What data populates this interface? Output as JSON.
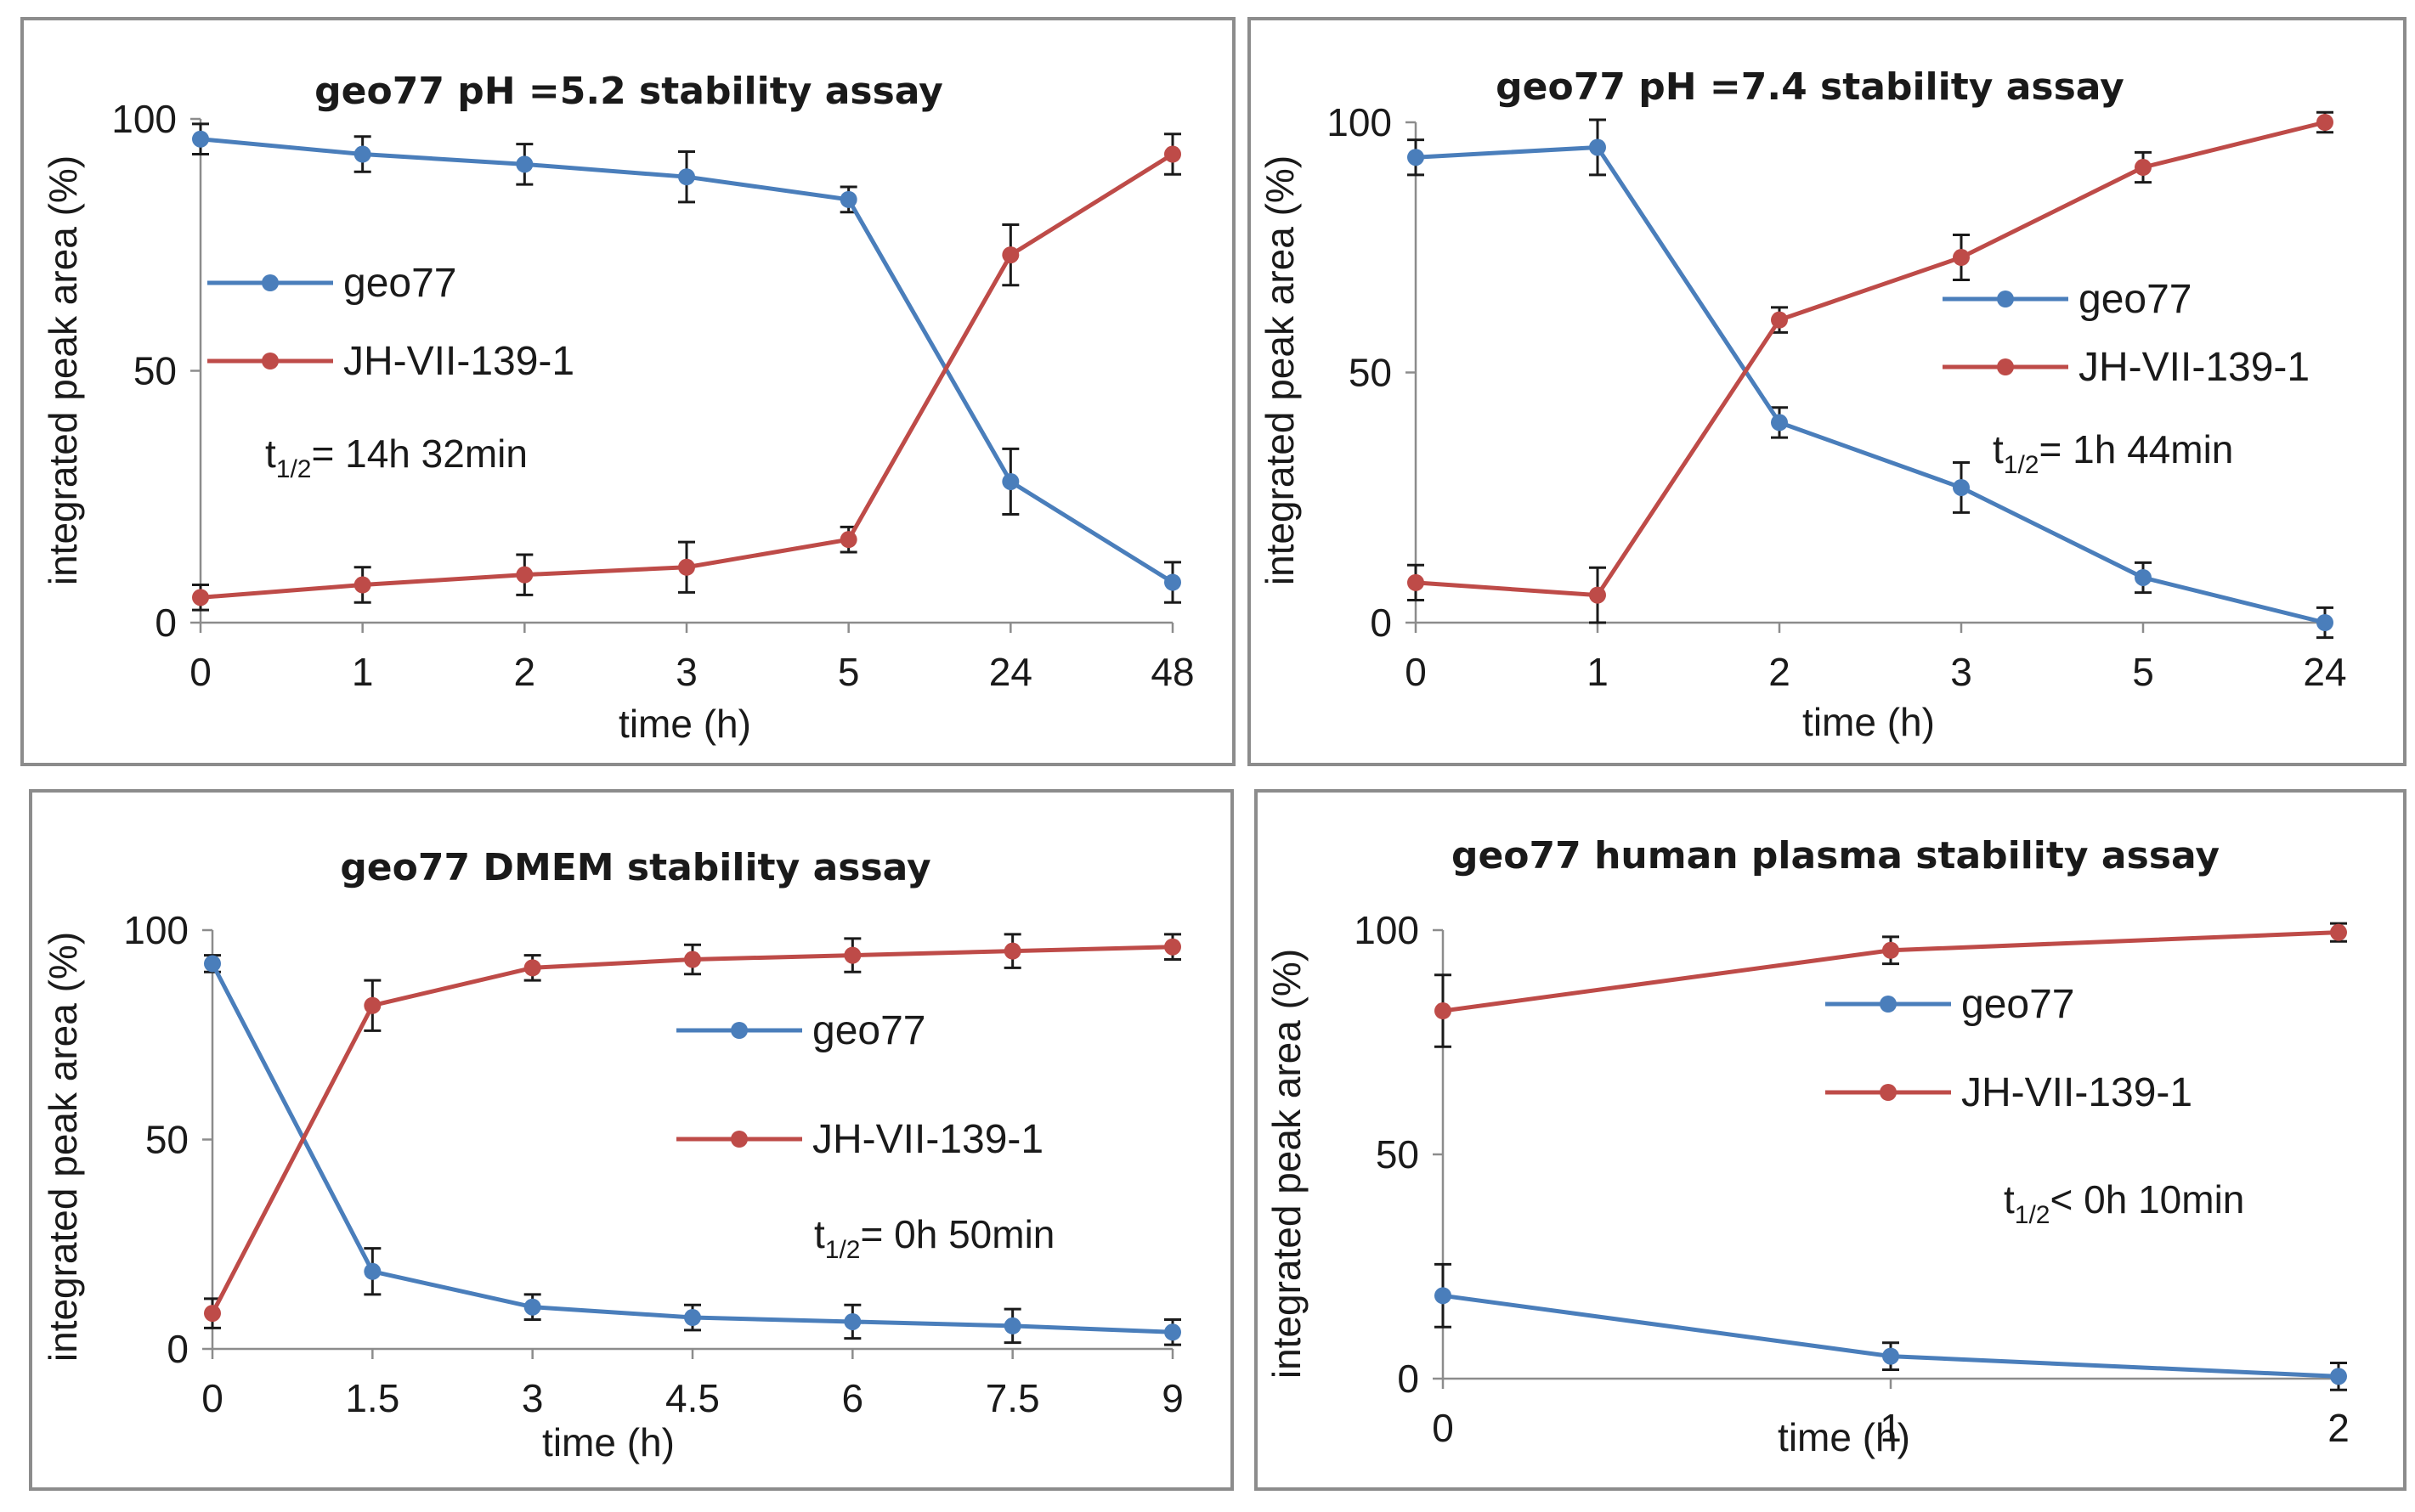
{
  "chart_data": [
    {
      "type": "line",
      "title": "geo77 pH =5.2 stability assay",
      "xlabel": "time (h)",
      "ylabel": "integrated peak area (%)",
      "categories": [
        "0",
        "1",
        "2",
        "3",
        "5",
        "24",
        "48"
      ],
      "ylim": [
        0,
        100
      ],
      "yticks": [
        "0",
        "50",
        "100"
      ],
      "legend_position": "center-left",
      "annotation": {
        "prefix": "t",
        "sub": "1/2",
        "text": "= 14h 32min"
      },
      "series": [
        {
          "name": "geo77",
          "color": "#4a7ebb",
          "values": [
            96,
            93,
            91,
            88.5,
            84,
            28,
            8
          ],
          "errors": [
            3,
            3.5,
            4,
            5,
            2.5,
            6.5,
            4
          ]
        },
        {
          "name": "JH-VII-139-1",
          "color": "#be4b48",
          "values": [
            5,
            7.5,
            9.5,
            11,
            16.5,
            73,
            93
          ],
          "errors": [
            2.5,
            3.5,
            4,
            5,
            2.5,
            6,
            4
          ]
        }
      ]
    },
    {
      "type": "line",
      "title": "geo77 pH =7.4 stability assay",
      "xlabel": "time (h)",
      "ylabel": "integrated peak area (%)",
      "categories": [
        "0",
        "1",
        "2",
        "3",
        "5",
        "24"
      ],
      "ylim": [
        0,
        100
      ],
      "yticks": [
        "0",
        "50",
        "100"
      ],
      "legend_position": "center-right",
      "annotation": {
        "prefix": "t",
        "sub": "1/2",
        "text": "= 1h 44min"
      },
      "series": [
        {
          "name": "geo77",
          "color": "#4a7ebb",
          "values": [
            93,
            95,
            40,
            27,
            9,
            0
          ],
          "errors": [
            3.5,
            5.5,
            3,
            5,
            3,
            3
          ]
        },
        {
          "name": "JH-VII-139-1",
          "color": "#be4b48",
          "values": [
            8,
            5.5,
            60.5,
            73,
            91,
            100
          ],
          "errors": [
            3.5,
            5.5,
            2.5,
            4.5,
            3,
            2
          ]
        }
      ]
    },
    {
      "type": "line",
      "title": "geo77 DMEM stability assay",
      "xlabel": "time (h)",
      "ylabel": "integrated peak area (%)",
      "categories": [
        "0",
        "1.5",
        "3",
        "4.5",
        "6",
        "7.5",
        "9"
      ],
      "ylim": [
        0,
        100
      ],
      "yticks": [
        "0",
        "50",
        "100"
      ],
      "legend_position": "center-right",
      "annotation": {
        "prefix": "t",
        "sub": "1/2",
        "text": "= 0h 50min"
      },
      "series": [
        {
          "name": "geo77",
          "color": "#4a7ebb",
          "values": [
            92,
            18.5,
            10,
            7.5,
            6.5,
            5.5,
            4
          ],
          "errors": [
            2,
            5.5,
            3,
            3,
            4,
            4,
            3
          ]
        },
        {
          "name": "JH-VII-139-1",
          "color": "#be4b48",
          "values": [
            8.5,
            82,
            91,
            93,
            94,
            95,
            96
          ],
          "errors": [
            3.5,
            6,
            3,
            3.5,
            4,
            4,
            3
          ]
        }
      ]
    },
    {
      "type": "line",
      "title": "geo77 human plasma stability assay",
      "xlabel": "time (h)",
      "ylabel": "integrated peak area (%)",
      "categories": [
        "0",
        "1",
        "2"
      ],
      "ylim": [
        0,
        100
      ],
      "yticks": [
        "0",
        "50",
        "100"
      ],
      "legend_position": "center-right",
      "annotation": {
        "prefix": "t",
        "sub": "1/2",
        "text": "< 0h 10min"
      },
      "series": [
        {
          "name": "geo77",
          "color": "#4a7ebb",
          "values": [
            18.5,
            5,
            0.5
          ],
          "errors": [
            7,
            3,
            3
          ]
        },
        {
          "name": "JH-VII-139-1",
          "color": "#be4b48",
          "values": [
            82,
            95.5,
            99.5
          ],
          "errors": [
            8,
            3,
            2
          ]
        }
      ]
    }
  ]
}
